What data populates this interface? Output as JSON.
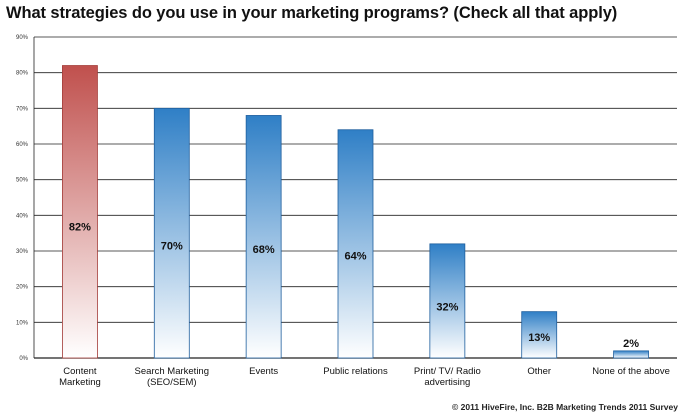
{
  "chart_data": {
    "type": "bar",
    "title": "What strategies do you use in your marketing programs? (Check all that apply)",
    "categories": [
      [
        "Content",
        "Marketing"
      ],
      [
        "Search Marketing",
        "(SEO/SEM)"
      ],
      [
        "Events"
      ],
      [
        "Public relations"
      ],
      [
        "Print/ TV/ Radio",
        "advertising"
      ],
      [
        "Other"
      ],
      [
        "None of the above"
      ]
    ],
    "values": [
      82,
      70,
      68,
      64,
      32,
      13,
      2
    ],
    "value_labels": [
      "82%",
      "70%",
      "68%",
      "64%",
      "32%",
      "13%",
      "2%"
    ],
    "ylim": [
      0,
      90
    ],
    "yticks": [
      0,
      10,
      20,
      30,
      40,
      50,
      60,
      70,
      80,
      90
    ],
    "ytick_labels": [
      "0%",
      "10%",
      "20%",
      "30%",
      "40%",
      "50%",
      "60%",
      "70%",
      "80%",
      "90%"
    ],
    "grid": true,
    "highlight_index": 0,
    "colors": {
      "highlight_top": "#c0504d",
      "highlight_bottom": "#ffffff",
      "bar_top": "#2f7fc6",
      "bar_bottom": "#ffffff",
      "bar_stroke": "#1f5f9e",
      "highlight_stroke": "#a33b37",
      "grid": "#222222"
    }
  },
  "footer": "© 2011 HiveFire, Inc. B2B Marketing Trends 2011 Survey"
}
